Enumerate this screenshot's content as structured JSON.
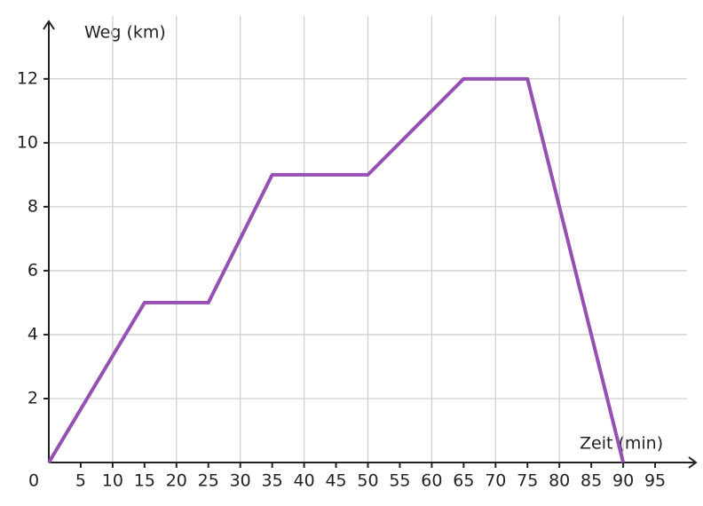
{
  "chart_data": {
    "type": "line",
    "x_label": "Zeit (min)",
    "y_label": "Weg (km)",
    "x": [
      0,
      15,
      25,
      35,
      50,
      65,
      75,
      90
    ],
    "series": [
      {
        "color": "#9450b4",
        "values": [
          0,
          5,
          5,
          9,
          9,
          12,
          12,
          0
        ]
      }
    ],
    "xlim": [
      0,
      100
    ],
    "ylim": [
      0,
      13.8
    ],
    "xticks": [
      0,
      5,
      10,
      15,
      20,
      25,
      30,
      35,
      40,
      45,
      50,
      55,
      60,
      65,
      70,
      75,
      80,
      85,
      90,
      95
    ],
    "yticks": [
      2,
      4,
      6,
      8,
      10,
      12
    ],
    "grid": true
  }
}
